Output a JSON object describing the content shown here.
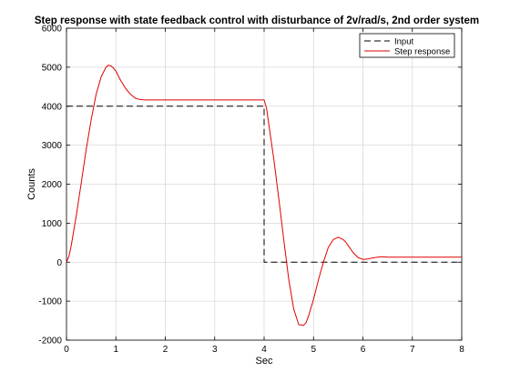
{
  "chart_data": {
    "type": "line",
    "title": "Step response with state feedback control with disturbance of 2v/rad/s, 2nd order system",
    "xlabel": "Sec",
    "ylabel": "Counts",
    "xlim": [
      0,
      8
    ],
    "ylim": [
      -2000,
      6000
    ],
    "xticks": [
      0,
      1,
      2,
      3,
      4,
      5,
      6,
      7,
      8
    ],
    "yticks": [
      -2000,
      -1000,
      0,
      1000,
      2000,
      3000,
      4000,
      5000,
      6000
    ],
    "grid": true,
    "legend_position": "top-right",
    "series": [
      {
        "name": "Input",
        "color": "#000000",
        "style": "dashed",
        "x": [
          0,
          4,
          4,
          8
        ],
        "y": [
          4000,
          4000,
          0,
          0
        ]
      },
      {
        "name": "Step response",
        "color": "#e00000",
        "style": "solid",
        "x": [
          0,
          0.05,
          0.1,
          0.2,
          0.3,
          0.4,
          0.5,
          0.6,
          0.7,
          0.8,
          0.85,
          0.9,
          0.95,
          1.0,
          1.1,
          1.2,
          1.3,
          1.4,
          1.5,
          1.6,
          2.0,
          3.0,
          4.0,
          4.05,
          4.1,
          4.2,
          4.3,
          4.4,
          4.5,
          4.6,
          4.7,
          4.8,
          4.85,
          4.9,
          5.0,
          5.1,
          5.2,
          5.3,
          5.4,
          5.5,
          5.6,
          5.65,
          5.7,
          5.8,
          5.9,
          6.0,
          6.1,
          6.2,
          6.3,
          6.4,
          6.5,
          7.0,
          8.0
        ],
        "y": [
          0,
          150,
          450,
          1200,
          2050,
          2900,
          3650,
          4300,
          4750,
          5000,
          5050,
          5040,
          4980,
          4900,
          4650,
          4450,
          4300,
          4200,
          4170,
          4160,
          4160,
          4160,
          4160,
          3950,
          3500,
          2600,
          1600,
          550,
          -450,
          -1200,
          -1600,
          -1620,
          -1550,
          -1380,
          -950,
          -450,
          0,
          380,
          580,
          640,
          580,
          520,
          430,
          250,
          120,
          70,
          80,
          110,
          130,
          140,
          130,
          130,
          130
        ]
      }
    ]
  }
}
